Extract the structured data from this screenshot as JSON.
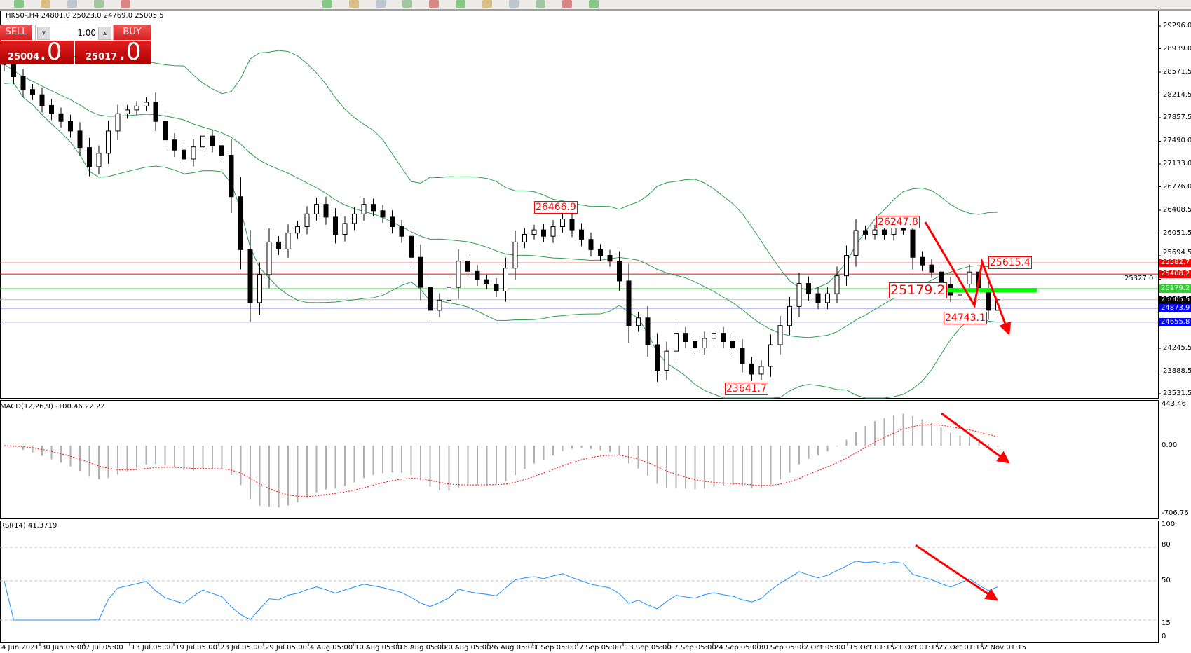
{
  "toolbar": {
    "icons": [
      "new-order-icon",
      "market-watch-icon",
      "cloud-icon",
      "signals-icon",
      "auto-trading-icon",
      "chart-bar-icon",
      "chart-candle-icon",
      "chart-line-icon",
      "zoom-in-icon",
      "zoom-out-icon",
      "tile-icon",
      "scroll-icon",
      "shift-icon",
      "indicators-icon",
      "period-icon",
      "templates-icon"
    ]
  },
  "chart": {
    "title": "HK50-,H4  24801.0 25023.0 24769.0 25005.5",
    "symbol": "HK50-",
    "timeframe": "H4"
  },
  "trade_panel": {
    "sell_label": "SELL",
    "buy_label": "BUY",
    "lot_value": "1.00",
    "sell_price_main": "25004",
    "sell_price_frac": ".0",
    "buy_price_main": "25017",
    "buy_price_frac": ".0"
  },
  "price_axis": {
    "ticks": [
      "29296.0",
      "28939.0",
      "28571.5",
      "28214.5",
      "27857.5",
      "27490.0",
      "27133.0",
      "26776.0",
      "26408.5",
      "26051.5",
      "25694.5",
      "25327.0",
      "24245.5",
      "23888.5",
      "23531.5"
    ]
  },
  "hlines": [
    {
      "value": 25582.7,
      "label": "25582.7",
      "color": "#ff0000"
    },
    {
      "value": 25408.2,
      "label": "25408.2",
      "color": "#ff0000"
    },
    {
      "value": 25179.2,
      "label": "25179.2",
      "color": "#33cc33"
    },
    {
      "value": 25005.5,
      "label": "25005.5",
      "color": "#c0c0c0",
      "tag_color": "#000000"
    },
    {
      "value": 24873.9,
      "label": "24873.9",
      "color": "#0000ff"
    },
    {
      "value": 24655.8,
      "label": "24655.8",
      "color": "#0000ff"
    }
  ],
  "annotations": [
    {
      "label": "26466.9"
    },
    {
      "label": "26247.8"
    },
    {
      "label": "25615.4"
    },
    {
      "label": "25179.2"
    },
    {
      "label": "24743.1"
    },
    {
      "label": "23641.7"
    }
  ],
  "macd": {
    "title": "MACD(12,26,9) -100.46 22.22",
    "ticks": [
      "443.46",
      "0.00",
      "-706.76"
    ],
    "range": [
      -706.76,
      443.46
    ]
  },
  "rsi": {
    "title": "RSI(14) 41.3719",
    "ticks": [
      "100",
      "80",
      "50",
      "15",
      "0"
    ],
    "levels": [
      80,
      50,
      15
    ]
  },
  "time_axis": {
    "labels": [
      "4 Jun 2021",
      "30 Jun 05:00",
      "7 Jul 05:00",
      "13 Jul 05:00",
      "19 Jul 05:00",
      "23 Jul 05:00",
      "29 Jul 05:00",
      "4 Aug 05:00",
      "10 Aug 05:00",
      "16 Aug 05:00",
      "20 Aug 05:00",
      "26 Aug 05:00",
      "1 Sep 05:00",
      "7 Sep 05:00",
      "13 Sep 05:00",
      "17 Sep 05:00",
      "24 Sep 05:00",
      "30 Sep 05:00",
      "7 Oct 05:00",
      "15 Oct 01:15",
      "21 Oct 01:15",
      "27 Oct 01:15",
      "2 Nov 01:15"
    ]
  },
  "colors": {
    "bands": "#2e9e4f",
    "macd_hist": "#b0b0b0",
    "macd_signal": "#ff0000",
    "rsi": "#1e90ff",
    "arrow": "#ff0000",
    "support_bar": "#00ff00"
  },
  "chart_data": {
    "type": "candlestick",
    "indicators": [
      "Bollinger Bands",
      "MACD(12,26,9)",
      "RSI(14)"
    ],
    "price_range": [
      23531.5,
      29296.0
    ],
    "closes": [
      28692,
      28500,
      28300,
      28218,
      28050,
      27920,
      27800,
      27650,
      27390,
      27090,
      27300,
      27650,
      27920,
      27980,
      28040,
      28100,
      27800,
      27510,
      27350,
      27210,
      27400,
      27570,
      27420,
      27270,
      26620,
      25790,
      24960,
      25400,
      25910,
      25800,
      26050,
      26150,
      26350,
      26500,
      26300,
      26030,
      26200,
      26350,
      26500,
      26400,
      26300,
      26150,
      26000,
      25670,
      25200,
      24840,
      25000,
      25200,
      25610,
      25450,
      25320,
      25250,
      25140,
      25500,
      25910,
      26030,
      26100,
      26000,
      26150,
      26270,
      26100,
      25950,
      25790,
      25700,
      25610,
      25300,
      24600,
      24720,
      24300,
      23900,
      24200,
      24480,
      24350,
      24250,
      24400,
      24480,
      24350,
      24250,
      24000,
      23840,
      23960,
      24300,
      24600,
      24900,
      25260,
      25100,
      24960,
      25100,
      25380,
      25700,
      26090,
      26030,
      26100,
      26030,
      26150,
      26100,
      25670,
      25550,
      25440,
      25250,
      25080,
      25250,
      25440,
      25140,
      24840,
      25005
    ]
  }
}
